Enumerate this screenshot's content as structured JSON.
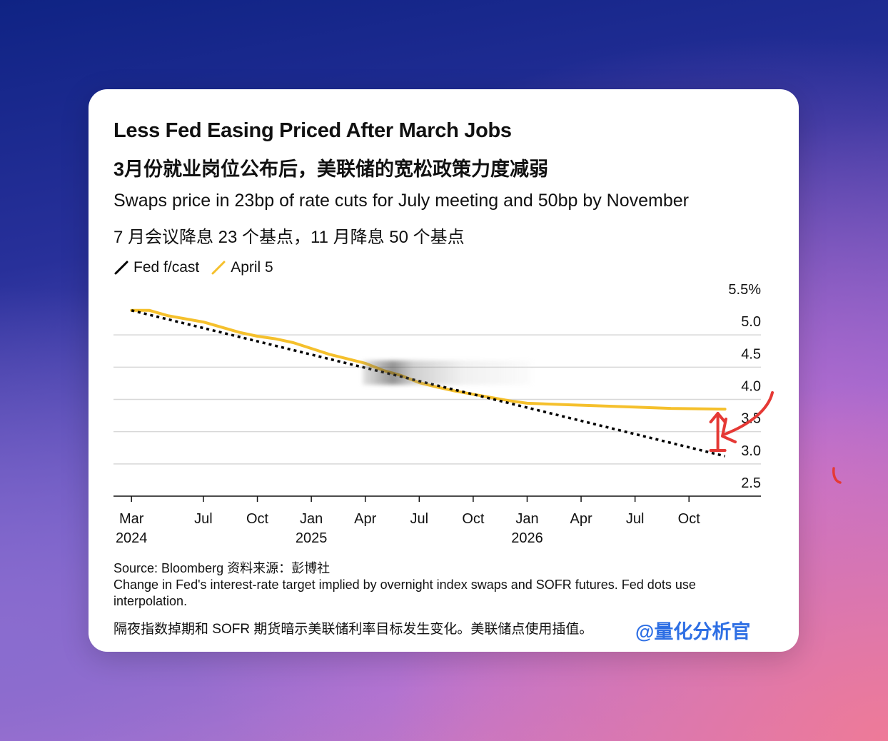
{
  "card": {
    "title": "Less Fed Easing Priced After March Jobs",
    "title_zh": "3月份就业岗位公布后，美联储的宽松政策力度减弱",
    "subtitle": "Swaps price in 23bp of rate cuts for July meeting and 50bp by November",
    "subtitle_zh": "7 月会议降息 23 个基点，11 月降息 50 个基点",
    "source": "Source: Bloomberg 资料来源：彭博社",
    "note": "Change in Fed's interest-rate target implied by overnight index swaps and SOFR futures. Fed dots use interpolation.",
    "note_zh": "隔夜指数掉期和 SOFR 期货暗示美联储利率目标发生变化。美联储点使用插值。",
    "watermark": "@量化分析官"
  },
  "colors": {
    "fed_forecast": "#000000",
    "april5": "#f5c02c",
    "annotation": "#e53935"
  },
  "chart_data": {
    "type": "line",
    "yunit": "%",
    "ylim": [
      2.5,
      5.5
    ],
    "yticks": [
      {
        "value": 5.5,
        "label": "5.5%"
      },
      {
        "value": 5.0,
        "label": "5.0"
      },
      {
        "value": 4.5,
        "label": "4.5"
      },
      {
        "value": 4.0,
        "label": "4.0"
      },
      {
        "value": 3.5,
        "label": "3.5"
      },
      {
        "value": 3.0,
        "label": "3.0"
      },
      {
        "value": 2.5,
        "label": "2.5"
      }
    ],
    "xrange": [
      "2024-02",
      "2027-02"
    ],
    "xticks": [
      {
        "date": "2024-03",
        "label": "Mar",
        "year": "2024"
      },
      {
        "date": "2024-07",
        "label": "Jul",
        "year": ""
      },
      {
        "date": "2024-10",
        "label": "Oct",
        "year": ""
      },
      {
        "date": "2025-01",
        "label": "Jan",
        "year": "2025"
      },
      {
        "date": "2025-04",
        "label": "Apr",
        "year": ""
      },
      {
        "date": "2025-07",
        "label": "Jul",
        "year": ""
      },
      {
        "date": "2025-10",
        "label": "Oct",
        "year": ""
      },
      {
        "date": "2026-01",
        "label": "Jan",
        "year": "2026"
      },
      {
        "date": "2026-04",
        "label": "Apr",
        "year": ""
      },
      {
        "date": "2026-07",
        "label": "Jul",
        "year": ""
      },
      {
        "date": "2026-10",
        "label": "Oct",
        "year": ""
      }
    ],
    "grid": true,
    "legend_position": "top-left",
    "series": [
      {
        "name": "Fed f/cast",
        "style": "dotted",
        "points": [
          {
            "x": "2024-03",
            "y": 5.38
          },
          {
            "x": "2026-12",
            "y": 3.12
          }
        ]
      },
      {
        "name": "April 5",
        "style": "solid",
        "points": [
          {
            "x": "2024-03",
            "y": 5.38
          },
          {
            "x": "2024-04",
            "y": 5.38
          },
          {
            "x": "2024-05",
            "y": 5.3
          },
          {
            "x": "2024-06",
            "y": 5.25
          },
          {
            "x": "2024-07",
            "y": 5.2
          },
          {
            "x": "2024-08",
            "y": 5.12
          },
          {
            "x": "2024-09",
            "y": 5.04
          },
          {
            "x": "2024-10",
            "y": 4.98
          },
          {
            "x": "2024-11",
            "y": 4.94
          },
          {
            "x": "2024-12",
            "y": 4.88
          },
          {
            "x": "2025-01",
            "y": 4.79
          },
          {
            "x": "2025-02",
            "y": 4.7
          },
          {
            "x": "2025-03",
            "y": 4.63
          },
          {
            "x": "2025-04",
            "y": 4.56
          },
          {
            "x": "2025-05",
            "y": 4.45
          },
          {
            "x": "2025-06",
            "y": 4.37
          },
          {
            "x": "2025-07",
            "y": 4.26
          },
          {
            "x": "2025-08",
            "y": 4.19
          },
          {
            "x": "2025-09",
            "y": 4.13
          },
          {
            "x": "2025-10",
            "y": 4.08
          },
          {
            "x": "2025-11",
            "y": 4.03
          },
          {
            "x": "2025-12",
            "y": 3.98
          },
          {
            "x": "2026-01",
            "y": 3.94
          },
          {
            "x": "2026-03",
            "y": 3.92
          },
          {
            "x": "2026-05",
            "y": 3.9
          },
          {
            "x": "2026-07",
            "y": 3.88
          },
          {
            "x": "2026-09",
            "y": 3.86
          },
          {
            "x": "2026-12",
            "y": 3.85
          }
        ]
      }
    ]
  }
}
